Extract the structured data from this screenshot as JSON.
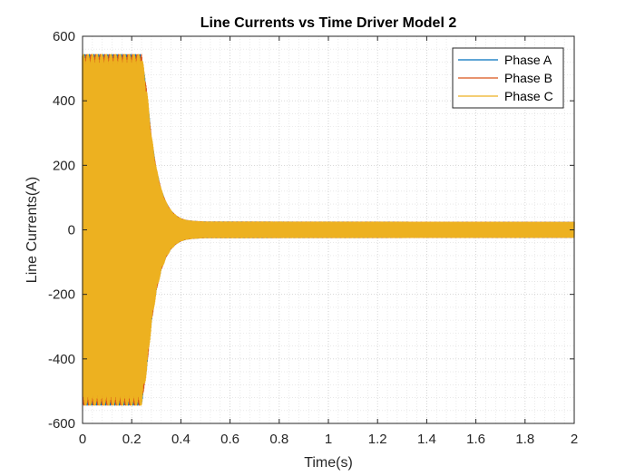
{
  "chart_data": {
    "type": "line",
    "title": "Line Currents vs Time Driver Model 2",
    "xlabel": "Time(s)",
    "ylabel": "Line Currents(A)",
    "xlim": [
      0,
      2
    ],
    "ylim": [
      -600,
      600
    ],
    "xticks": [
      "0",
      "0.2",
      "0.4",
      "0.6",
      "0.8",
      "1",
      "1.2",
      "1.4",
      "1.6",
      "1.8",
      "2"
    ],
    "yticks": [
      "600",
      "400",
      "200",
      "0",
      "-200",
      "-400",
      "-600"
    ],
    "grid": true,
    "minor_grid": true,
    "legend_position": "top-right",
    "series": [
      {
        "name": "Phase A",
        "color": "#0072BD",
        "envelope": {
          "t": [
            0,
            0.24,
            0.26,
            0.28,
            0.3,
            0.32,
            0.34,
            0.36,
            0.38,
            0.4,
            0.42,
            0.45,
            0.5,
            2.0
          ],
          "amp": [
            545,
            545,
            440,
            290,
            190,
            125,
            85,
            60,
            45,
            36,
            31,
            28,
            26,
            25
          ]
        }
      },
      {
        "name": "Phase B",
        "color": "#D95319",
        "envelope": {
          "t": [
            0,
            0.24,
            0.26,
            0.28,
            0.3,
            0.32,
            0.34,
            0.36,
            0.38,
            0.4,
            0.42,
            0.45,
            0.5,
            2.0
          ],
          "amp": [
            545,
            545,
            440,
            290,
            190,
            125,
            85,
            60,
            45,
            36,
            31,
            28,
            26,
            25
          ]
        }
      },
      {
        "name": "Phase C",
        "color": "#EDB120",
        "envelope": {
          "t": [
            0,
            0.24,
            0.26,
            0.28,
            0.3,
            0.32,
            0.34,
            0.36,
            0.38,
            0.4,
            0.42,
            0.45,
            0.5,
            2.0
          ],
          "amp": [
            545,
            545,
            440,
            290,
            190,
            125,
            85,
            60,
            45,
            36,
            31,
            28,
            26,
            25
          ]
        }
      }
    ]
  }
}
